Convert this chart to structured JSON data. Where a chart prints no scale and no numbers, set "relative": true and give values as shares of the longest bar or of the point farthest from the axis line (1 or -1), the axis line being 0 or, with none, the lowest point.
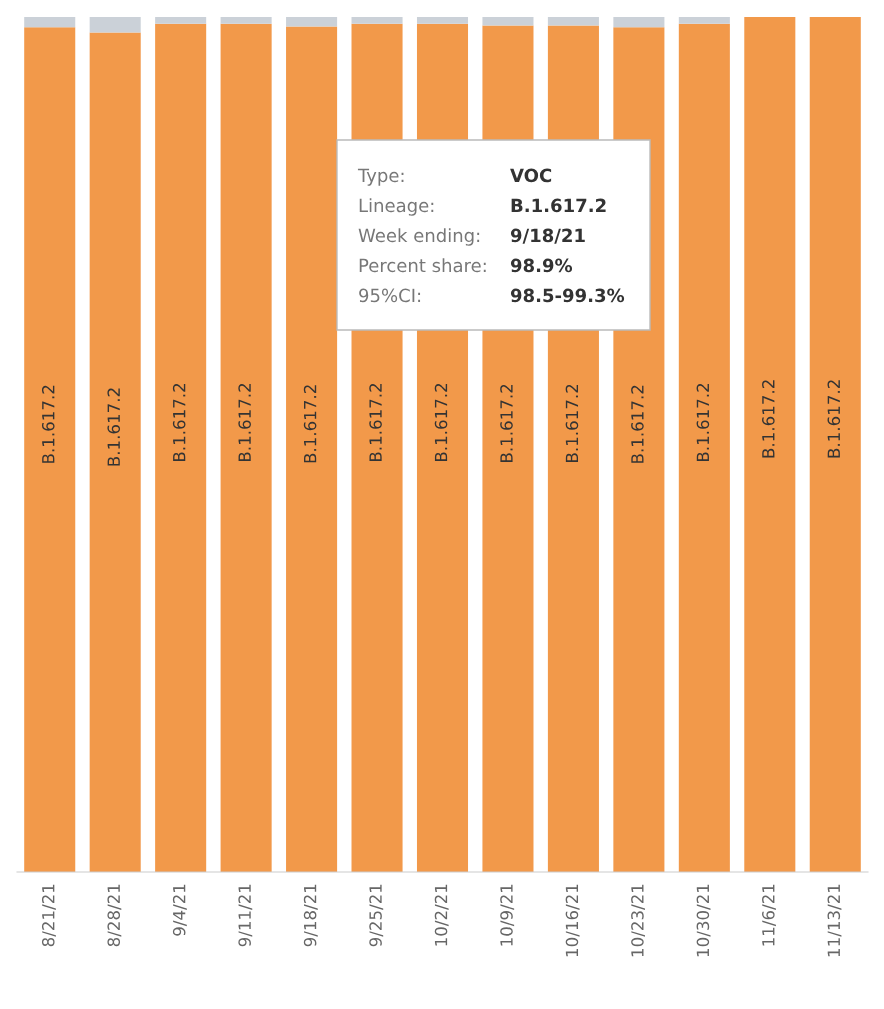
{
  "chart_data": {
    "type": "bar",
    "stacked": true,
    "relative": true,
    "categories": [
      "8/21/21",
      "8/28/21",
      "9/4/21",
      "9/11/21",
      "9/18/21",
      "9/25/21",
      "10/2/21",
      "10/9/21",
      "10/16/21",
      "10/23/21",
      "10/30/21",
      "11/6/21",
      "11/13/21"
    ],
    "series": [
      {
        "name": "B.1.617.2",
        "color": "#f2994a",
        "values": [
          0.988,
          0.982,
          0.992,
          0.992,
          0.989,
          0.992,
          0.992,
          0.99,
          0.99,
          0.988,
          0.992,
          1,
          1
        ]
      },
      {
        "color": "#cbd1d8",
        "values": [
          0.012,
          0.018,
          0.008,
          0.008,
          0.011,
          0.008,
          0.008,
          0.01,
          0.01,
          0.012,
          0.008,
          0,
          0
        ]
      }
    ],
    "annotations": [
      "Type:",
      "VOC",
      "Lineage:",
      "B.1.617.2",
      "Week ending:",
      "9/18/21",
      "Percent share:",
      "98.9%",
      "95%CI:",
      "98.5-99.3%"
    ]
  }
}
